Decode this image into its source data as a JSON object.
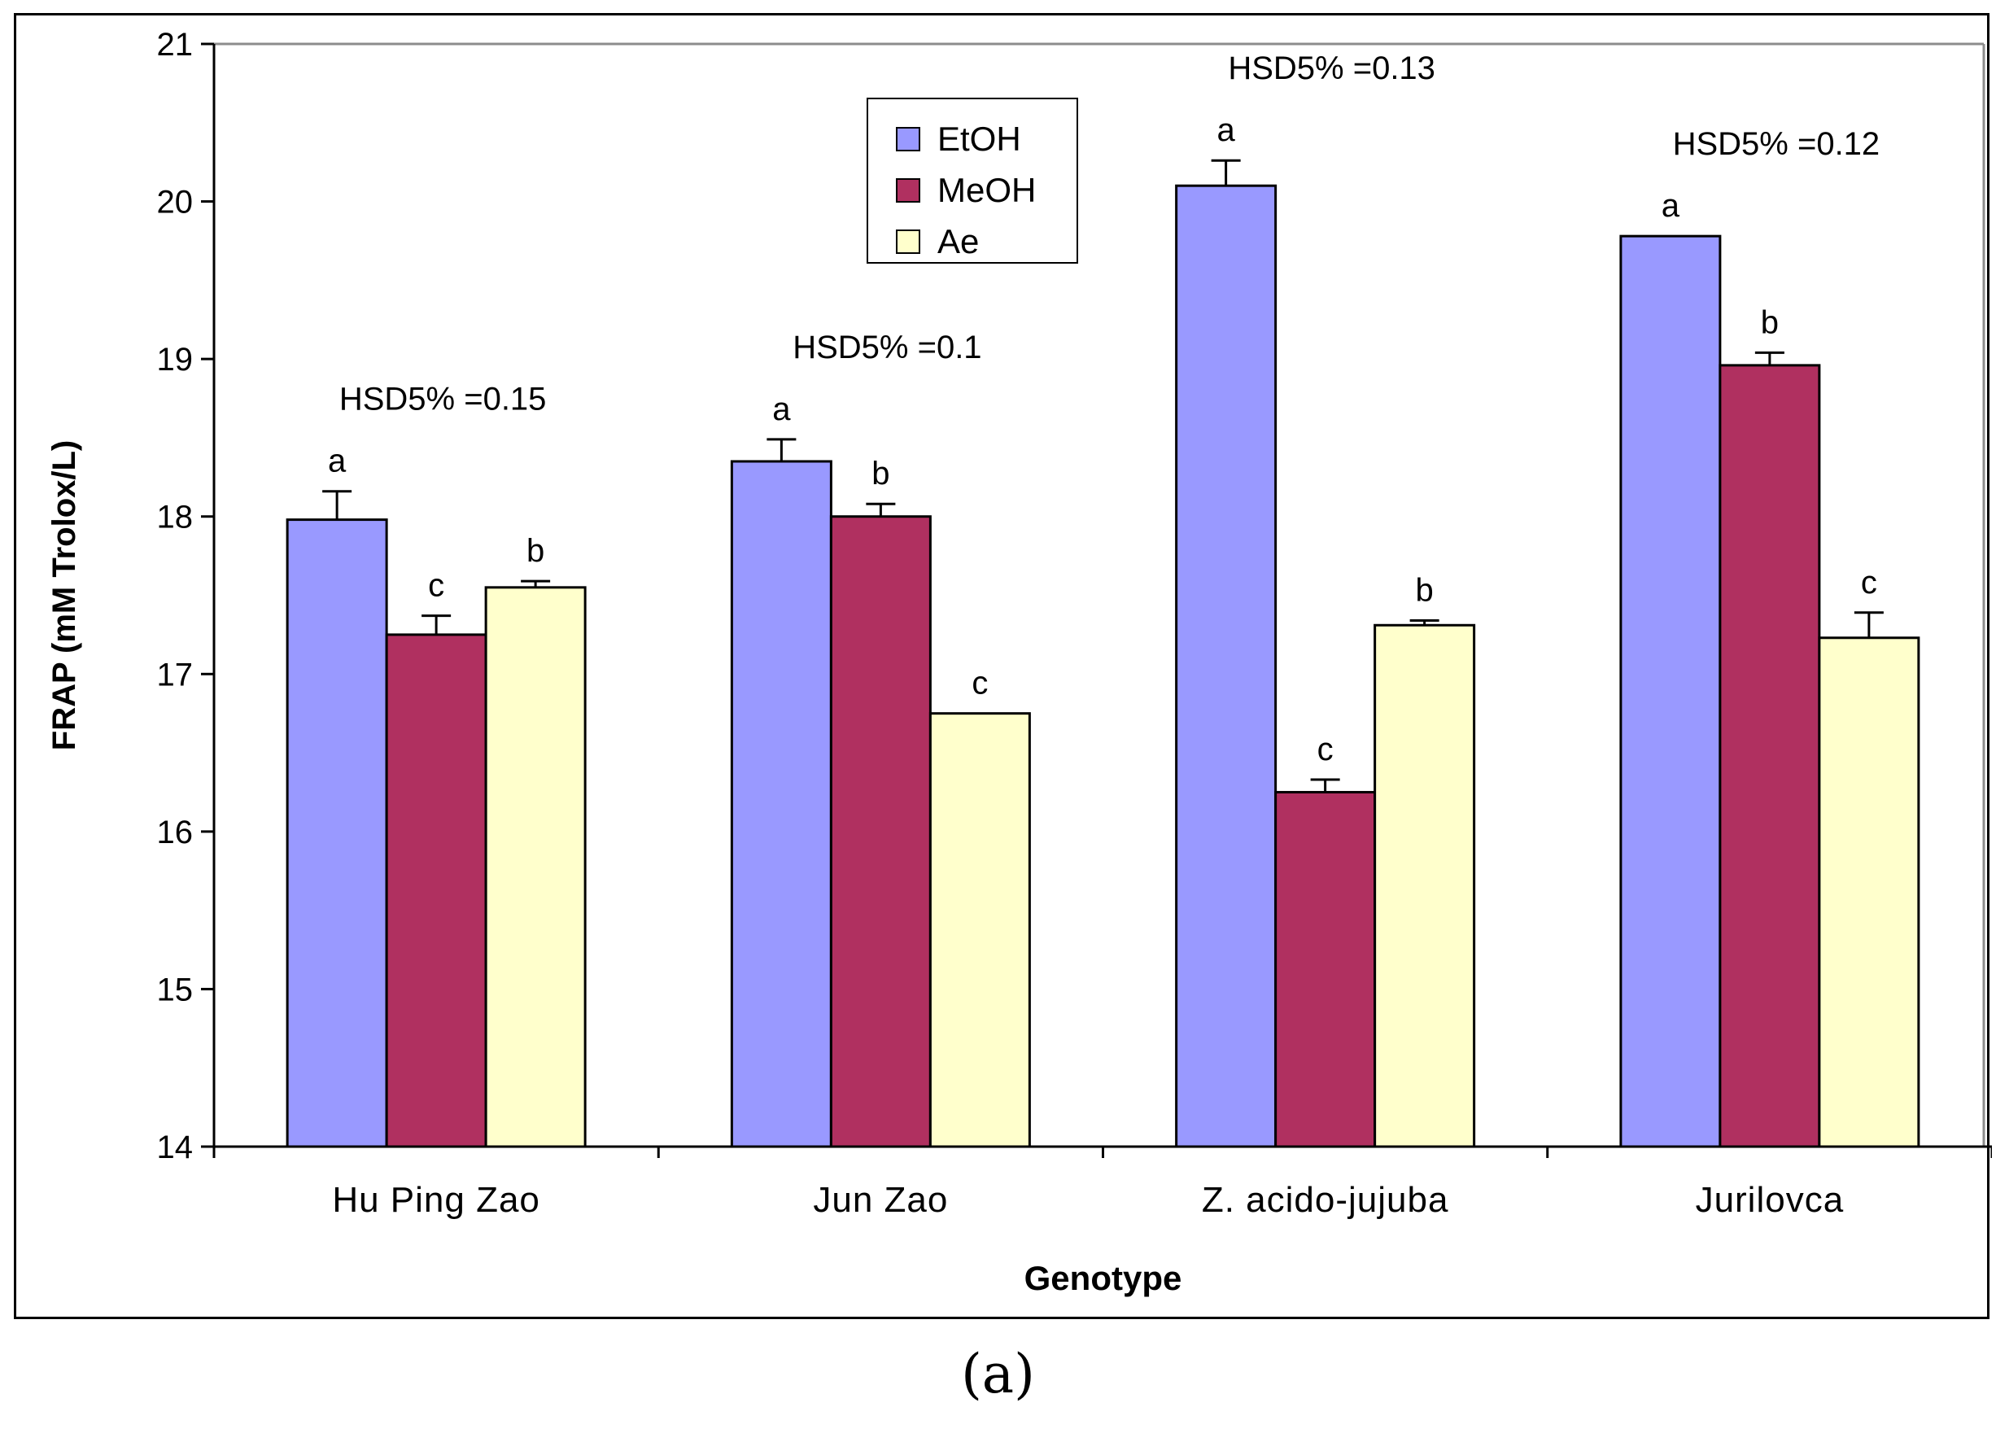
{
  "chart_data": {
    "type": "bar",
    "title": "",
    "xlabel": "Genotype",
    "ylabel": "FRAP (mM Trolox/L)",
    "ylim": [
      14,
      21
    ],
    "yticks": [
      14,
      15,
      16,
      17,
      18,
      19,
      20,
      21
    ],
    "grid": false,
    "legend_position": "top-center",
    "categories": [
      "Hu Ping Zao",
      "Jun Zao",
      "Z. acido-jujuba",
      "Jurilovca"
    ],
    "series": [
      {
        "name": "EtOH",
        "color": "#9999ff",
        "values": [
          17.98,
          18.35,
          20.1,
          19.78
        ],
        "errors": [
          0.18,
          0.14,
          0.16,
          0.0
        ],
        "letters": [
          "a",
          "a",
          "a",
          "a"
        ]
      },
      {
        "name": "MeOH",
        "color": "#b03060",
        "values": [
          17.25,
          18.0,
          16.25,
          18.96
        ],
        "errors": [
          0.12,
          0.08,
          0.08,
          0.08
        ],
        "letters": [
          "c",
          "b",
          "c",
          "b"
        ]
      },
      {
        "name": "Ae",
        "color": "#ffffcc",
        "values": [
          17.55,
          16.75,
          17.31,
          17.23
        ],
        "errors": [
          0.04,
          0.0,
          0.03,
          0.16
        ],
        "letters": [
          "b",
          "c",
          "b",
          "c"
        ]
      }
    ],
    "annotations": [
      "HSD5% =0.15",
      "HSD5% =0.1",
      "HSD5% =0.13",
      "HSD5% =0.12"
    ]
  },
  "caption": "(a)"
}
